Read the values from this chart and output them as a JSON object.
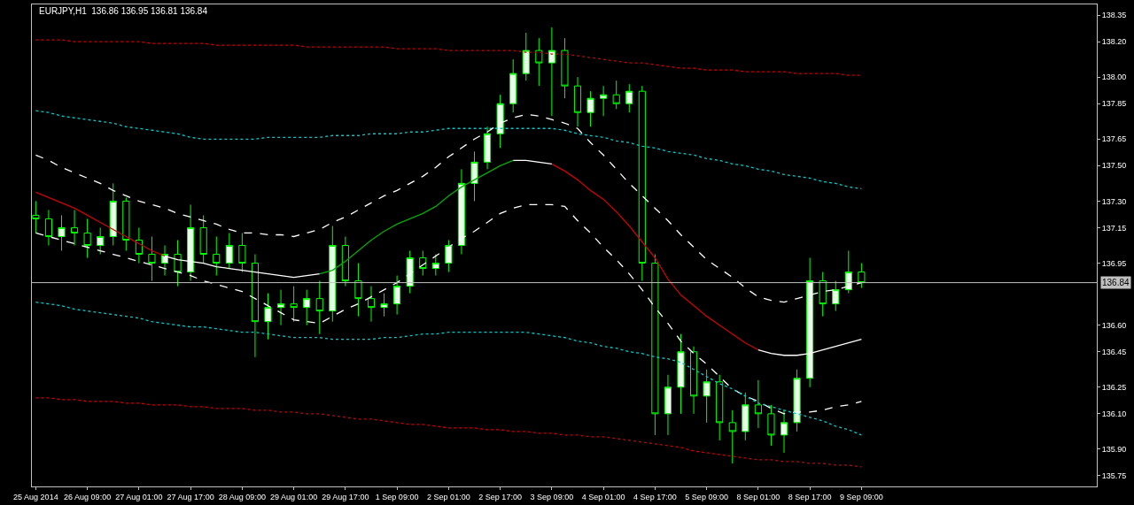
{
  "chart_data": {
    "type": "candlestick",
    "title": "EURJPY,H1  136.86 136.95 136.81 136.84",
    "color": "#00ff00",
    "categories": [
      "25 Aug 2014",
      null,
      null,
      null,
      "26 Aug 09:00",
      null,
      null,
      null,
      "27 Aug 01:00",
      null,
      null,
      null,
      "27 Aug 17:00",
      null,
      null,
      null,
      "28 Aug 09:00",
      null,
      null,
      null,
      "29 Aug 01:00",
      null,
      null,
      null,
      "29 Aug 17:00",
      null,
      null,
      null,
      "1 Sep 09:00",
      null,
      null,
      null,
      "2 Sep 01:00",
      null,
      null,
      null,
      "2 Sep 17:00",
      null,
      null,
      null,
      "3 Sep 09:00",
      null,
      null,
      null,
      "4 Sep 01:00",
      null,
      null,
      null,
      "4 Sep 17:00",
      null,
      null,
      null,
      "5 Sep 09:00",
      null,
      null,
      null,
      "8 Sep 01:00",
      null,
      null,
      null,
      "8 Sep 17:00",
      null,
      null,
      null,
      "9 Sep 09:00"
    ],
    "ohlc": [
      [
        137.22,
        137.3,
        137.12,
        137.2
      ],
      [
        137.2,
        137.25,
        137.05,
        137.1
      ],
      [
        137.1,
        137.22,
        137.02,
        137.15
      ],
      [
        137.15,
        137.25,
        137.05,
        137.12
      ],
      [
        137.12,
        137.2,
        136.98,
        137.05
      ],
      [
        137.05,
        137.15,
        137.0,
        137.1
      ],
      [
        137.1,
        137.4,
        137.05,
        137.3
      ],
      [
        137.3,
        137.32,
        137.02,
        137.08
      ],
      [
        137.08,
        137.15,
        136.95,
        137.0
      ],
      [
        137.0,
        137.1,
        136.85,
        136.95
      ],
      [
        136.95,
        137.05,
        136.88,
        137.0
      ],
      [
        137.0,
        137.08,
        136.82,
        136.9
      ],
      [
        136.9,
        137.28,
        136.85,
        137.15
      ],
      [
        137.15,
        137.22,
        136.95,
        137.0
      ],
      [
        137.0,
        137.1,
        136.88,
        136.95
      ],
      [
        136.95,
        137.12,
        136.92,
        137.05
      ],
      [
        137.05,
        137.12,
        136.9,
        136.95
      ],
      [
        136.95,
        137.0,
        136.42,
        136.62
      ],
      [
        136.62,
        136.78,
        136.52,
        136.7
      ],
      [
        136.7,
        136.8,
        136.6,
        136.72
      ],
      [
        136.72,
        136.82,
        136.62,
        136.7
      ],
      [
        136.7,
        136.8,
        136.6,
        136.75
      ],
      [
        136.75,
        136.85,
        136.55,
        136.68
      ],
      [
        136.68,
        137.16,
        136.62,
        137.05
      ],
      [
        137.05,
        137.1,
        136.82,
        136.85
      ],
      [
        136.85,
        136.95,
        136.65,
        136.75
      ],
      [
        136.75,
        136.82,
        136.62,
        136.7
      ],
      [
        136.7,
        136.78,
        136.65,
        136.72
      ],
      [
        136.72,
        136.88,
        136.66,
        136.82
      ],
      [
        136.82,
        137.02,
        136.78,
        136.98
      ],
      [
        136.98,
        137.02,
        136.88,
        136.92
      ],
      [
        136.92,
        137.0,
        136.88,
        136.95
      ],
      [
        136.95,
        137.08,
        136.9,
        137.05
      ],
      [
        137.05,
        137.48,
        137.0,
        137.4
      ],
      [
        137.4,
        137.58,
        137.3,
        137.52
      ],
      [
        137.52,
        137.72,
        137.48,
        137.68
      ],
      [
        137.68,
        137.9,
        137.6,
        137.85
      ],
      [
        137.85,
        138.1,
        137.8,
        138.02
      ],
      [
        138.02,
        138.25,
        137.98,
        138.15
      ],
      [
        138.15,
        138.22,
        137.95,
        138.08
      ],
      [
        138.08,
        138.28,
        137.78,
        138.15
      ],
      [
        138.15,
        138.22,
        137.88,
        137.95
      ],
      [
        137.95,
        138.0,
        137.72,
        137.8
      ],
      [
        137.8,
        137.92,
        137.72,
        137.88
      ],
      [
        137.88,
        137.95,
        137.78,
        137.9
      ],
      [
        137.9,
        137.98,
        137.82,
        137.85
      ],
      [
        137.85,
        137.96,
        137.8,
        137.92
      ],
      [
        137.92,
        137.95,
        136.85,
        136.95
      ],
      [
        136.95,
        137.0,
        135.98,
        136.1
      ],
      [
        136.1,
        136.32,
        135.98,
        136.25
      ],
      [
        136.25,
        136.55,
        136.1,
        136.45
      ],
      [
        136.45,
        136.48,
        136.1,
        136.2
      ],
      [
        136.2,
        136.35,
        136.05,
        136.28
      ],
      [
        136.28,
        136.32,
        135.95,
        136.05
      ],
      [
        136.05,
        136.12,
        135.82,
        136.0
      ],
      [
        136.0,
        136.22,
        135.95,
        136.15
      ],
      [
        136.15,
        136.29,
        136.02,
        136.1
      ],
      [
        136.1,
        136.15,
        135.92,
        135.98
      ],
      [
        135.98,
        136.12,
        135.88,
        136.05
      ],
      [
        136.05,
        136.35,
        136.0,
        136.3
      ],
      [
        136.3,
        136.98,
        136.25,
        136.85
      ],
      [
        136.85,
        136.9,
        136.65,
        136.72
      ],
      [
        136.72,
        136.85,
        136.68,
        136.8
      ],
      [
        136.8,
        137.02,
        136.78,
        136.9
      ],
      [
        136.9,
        136.95,
        136.81,
        136.84
      ]
    ],
    "series": [
      {
        "type": "line",
        "color": "#cc0000",
        "line_style": "dotted",
        "values": [
          138.21,
          138.21,
          138.21,
          138.2,
          138.2,
          138.2,
          138.2,
          138.2,
          138.2,
          138.19,
          138.19,
          138.19,
          138.19,
          138.19,
          138.18,
          138.18,
          138.18,
          138.18,
          138.18,
          138.18,
          138.18,
          138.17,
          138.17,
          138.17,
          138.17,
          138.17,
          138.17,
          138.17,
          138.16,
          138.16,
          138.16,
          138.16,
          138.15,
          138.15,
          138.15,
          138.15,
          138.15,
          138.15,
          138.14,
          138.14,
          138.13,
          138.13,
          138.12,
          138.11,
          138.1,
          138.09,
          138.08,
          138.08,
          138.07,
          138.06,
          138.05,
          138.05,
          138.04,
          138.04,
          138.04,
          138.03,
          138.03,
          138.03,
          138.03,
          138.02,
          138.02,
          138.02,
          138.02,
          138.01,
          138.01
        ]
      },
      {
        "type": "line",
        "color": "#00cccc",
        "line_style": "dotted",
        "values": [
          137.81,
          137.8,
          137.78,
          137.77,
          137.76,
          137.75,
          137.74,
          137.72,
          137.71,
          137.7,
          137.69,
          137.68,
          137.66,
          137.65,
          137.65,
          137.65,
          137.65,
          137.65,
          137.66,
          137.66,
          137.66,
          137.66,
          137.66,
          137.67,
          137.67,
          137.67,
          137.68,
          137.68,
          137.68,
          137.69,
          137.69,
          137.7,
          137.71,
          137.71,
          137.71,
          137.71,
          137.71,
          137.71,
          137.71,
          137.71,
          137.71,
          137.7,
          137.68,
          137.67,
          137.66,
          137.64,
          137.63,
          137.61,
          137.6,
          137.58,
          137.57,
          137.56,
          137.54,
          137.53,
          137.51,
          137.5,
          137.48,
          137.47,
          137.45,
          137.44,
          137.43,
          137.41,
          137.4,
          137.38,
          137.37
        ]
      },
      {
        "type": "line",
        "color": "#ffffff",
        "line_style": "dashed",
        "values": [
          137.56,
          137.53,
          137.49,
          137.46,
          137.43,
          137.4,
          137.36,
          137.33,
          137.3,
          137.28,
          137.26,
          137.23,
          137.21,
          137.19,
          137.17,
          137.14,
          137.12,
          137.12,
          137.11,
          137.11,
          137.1,
          137.12,
          137.14,
          137.18,
          137.21,
          137.25,
          137.29,
          137.33,
          137.36,
          137.4,
          137.44,
          137.49,
          137.55,
          137.6,
          137.65,
          137.69,
          137.74,
          137.77,
          137.79,
          137.78,
          137.76,
          137.74,
          137.71,
          137.63,
          137.56,
          137.48,
          137.4,
          137.33,
          137.26,
          137.19,
          137.11,
          137.04,
          136.97,
          136.92,
          136.87,
          136.81,
          136.76,
          136.74,
          136.73,
          136.75,
          136.77,
          136.79,
          136.8,
          136.82,
          136.84
        ]
      },
      {
        "type": "line",
        "color": "#cc0000",
        "line_style": "solid",
        "values": [
          137.35,
          137.32,
          137.29,
          137.26,
          137.22,
          137.18,
          137.14,
          137.1,
          137.06,
          137.02,
          136.99,
          null,
          null,
          null,
          null,
          null,
          null,
          null,
          null,
          null,
          null,
          null,
          null,
          null,
          null,
          null,
          null,
          null,
          null,
          null,
          null,
          null,
          null,
          null,
          null,
          null,
          null,
          null,
          null,
          null,
          137.51,
          137.47,
          137.42,
          137.36,
          137.31,
          137.24,
          137.16,
          137.07,
          136.98,
          136.86,
          136.77,
          136.71,
          136.65,
          136.6,
          136.55,
          136.5,
          136.46,
          null,
          null,
          null,
          null,
          null,
          null,
          null,
          null
        ]
      },
      {
        "type": "line",
        "color": "#ffffff",
        "line_style": "solid",
        "values": [
          null,
          null,
          null,
          null,
          null,
          null,
          null,
          null,
          null,
          null,
          136.99,
          136.97,
          136.96,
          136.95,
          136.93,
          136.92,
          136.91,
          136.9,
          136.89,
          136.88,
          136.87,
          136.88,
          136.89,
          null,
          null,
          null,
          null,
          null,
          null,
          null,
          null,
          null,
          null,
          null,
          null,
          null,
          null,
          137.53,
          137.53,
          137.52,
          137.51,
          null,
          null,
          null,
          null,
          null,
          null,
          null,
          null,
          null,
          null,
          null,
          null,
          null,
          null,
          null,
          136.46,
          136.44,
          136.43,
          136.43,
          136.44,
          136.46,
          136.48,
          136.5,
          136.52
        ]
      },
      {
        "type": "line",
        "color": "#00aa00",
        "line_style": "solid",
        "values": [
          null,
          null,
          null,
          null,
          null,
          null,
          null,
          null,
          null,
          null,
          null,
          null,
          null,
          null,
          null,
          null,
          null,
          null,
          null,
          null,
          null,
          null,
          136.89,
          136.91,
          136.96,
          137.02,
          137.08,
          137.13,
          137.17,
          137.2,
          137.23,
          137.27,
          137.33,
          137.38,
          137.42,
          137.46,
          137.5,
          137.53,
          null,
          null,
          null,
          null,
          null,
          null,
          null,
          null,
          null,
          null,
          null,
          null,
          null,
          null,
          null,
          null,
          null,
          null,
          null,
          null,
          null,
          null,
          null,
          null,
          null,
          null,
          null
        ]
      },
      {
        "type": "line",
        "color": "#ffffff",
        "line_style": "dashed",
        "values": [
          137.12,
          137.1,
          137.08,
          137.06,
          137.04,
          137.02,
          137.0,
          136.98,
          136.96,
          136.94,
          136.92,
          136.9,
          136.88,
          136.85,
          136.83,
          136.81,
          136.79,
          136.75,
          136.71,
          136.67,
          136.63,
          136.62,
          136.61,
          136.65,
          136.69,
          136.72,
          136.76,
          136.8,
          136.84,
          136.89,
          136.94,
          136.99,
          137.04,
          137.09,
          137.13,
          137.18,
          137.23,
          137.26,
          137.28,
          137.28,
          137.28,
          137.27,
          137.19,
          137.12,
          137.04,
          136.97,
          136.89,
          136.8,
          136.7,
          136.61,
          136.51,
          136.44,
          136.38,
          136.31,
          136.24,
          136.2,
          136.17,
          136.13,
          136.1,
          136.11,
          136.11,
          136.12,
          136.14,
          136.15,
          136.17
        ]
      },
      {
        "type": "line",
        "color": "#00cccc",
        "line_style": "dotted",
        "values": [
          136.73,
          136.72,
          136.71,
          136.69,
          136.68,
          136.67,
          136.66,
          136.65,
          136.64,
          136.62,
          136.61,
          136.6,
          136.59,
          136.59,
          136.58,
          136.57,
          136.56,
          136.56,
          136.55,
          136.54,
          136.53,
          136.53,
          136.53,
          136.52,
          136.52,
          136.52,
          136.52,
          136.53,
          136.53,
          136.54,
          136.55,
          136.55,
          136.56,
          136.56,
          136.56,
          136.56,
          136.56,
          136.56,
          136.56,
          136.55,
          136.54,
          136.53,
          136.51,
          136.5,
          136.48,
          136.47,
          136.45,
          136.44,
          136.42,
          136.41,
          136.39,
          136.35,
          136.31,
          136.27,
          136.24,
          136.2,
          136.16,
          136.14,
          136.12,
          136.1,
          136.08,
          136.06,
          136.03,
          136.01,
          135.98
        ]
      },
      {
        "type": "line",
        "color": "#cc0000",
        "line_style": "dotted",
        "values": [
          136.19,
          136.19,
          136.18,
          136.18,
          136.17,
          136.17,
          136.17,
          136.16,
          136.16,
          136.15,
          136.15,
          136.15,
          136.14,
          136.14,
          136.13,
          136.13,
          136.13,
          136.12,
          136.12,
          136.11,
          136.11,
          136.1,
          136.1,
          136.09,
          136.08,
          136.07,
          136.07,
          136.06,
          136.05,
          136.04,
          136.04,
          136.03,
          136.02,
          136.02,
          136.02,
          136.01,
          136.01,
          136.0,
          136.0,
          135.99,
          135.99,
          135.98,
          135.98,
          135.97,
          135.97,
          135.96,
          135.95,
          135.94,
          135.93,
          135.92,
          135.91,
          135.89,
          135.88,
          135.87,
          135.86,
          135.85,
          135.84,
          135.84,
          135.83,
          135.83,
          135.82,
          135.82,
          135.81,
          135.81,
          135.8
        ]
      }
    ],
    "ref_lines": [
      {
        "axis": "y",
        "value": 136.84,
        "label": "136.84",
        "color": "#c0c0c0"
      }
    ],
    "ylim": [
      135.69,
      138.41
    ],
    "yticks": [
      135.75,
      {
        "value": 135.9,
        "label": "135.90"
      },
      {
        "value": 136.1,
        "label": "136.10"
      },
      136.25,
      136.45,
      {
        "value": 136.6,
        "label": "136.60"
      },
      136.95,
      137.15,
      {
        "value": 137.3,
        "label": "137.30"
      },
      {
        "value": 137.5,
        "label": "137.50"
      },
      137.65,
      137.85,
      {
        "value": 138.0,
        "label": "138.00"
      },
      {
        "value": 138.2,
        "label": "138.20"
      },
      138.35
    ]
  }
}
